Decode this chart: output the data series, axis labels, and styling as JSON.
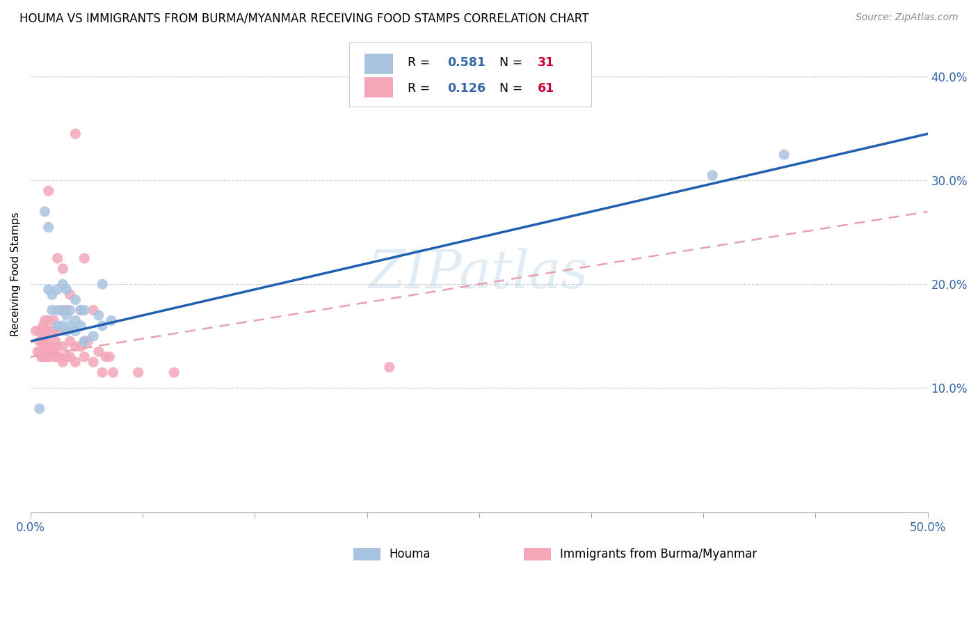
{
  "title": "HOUMA VS IMMIGRANTS FROM BURMA/MYANMAR RECEIVING FOOD STAMPS CORRELATION CHART",
  "source": "Source: ZipAtlas.com",
  "ylabel": "Receiving Food Stamps",
  "xlim": [
    0.0,
    0.5
  ],
  "ylim": [
    -0.02,
    0.44
  ],
  "ytick_labels": [
    "10.0%",
    "20.0%",
    "30.0%",
    "40.0%"
  ],
  "ytick_values": [
    0.1,
    0.2,
    0.3,
    0.4
  ],
  "xtick_minor": [
    0.0,
    0.0625,
    0.125,
    0.1875,
    0.25,
    0.3125,
    0.375,
    0.4375,
    0.5
  ],
  "houma_R": 0.581,
  "houma_N": 31,
  "burma_R": 0.126,
  "burma_N": 61,
  "houma_color": "#a8c4e0",
  "burma_color": "#f4a7b9",
  "houma_line_color": "#2060b0",
  "burma_line_color": "#e06080",
  "burma_line_dash_color": "#e8a0b0",
  "watermark": "ZIPatlas",
  "legend_R_color": "#3465a4",
  "legend_N_color": "#cc0033",
  "houma_x": [
    0.005,
    0.008,
    0.01,
    0.01,
    0.012,
    0.012,
    0.015,
    0.015,
    0.015,
    0.018,
    0.018,
    0.018,
    0.02,
    0.02,
    0.02,
    0.022,
    0.022,
    0.025,
    0.025,
    0.025,
    0.028,
    0.028,
    0.03,
    0.03,
    0.035,
    0.038,
    0.04,
    0.04,
    0.045,
    0.38,
    0.42
  ],
  "houma_y": [
    0.08,
    0.27,
    0.195,
    0.255,
    0.175,
    0.19,
    0.16,
    0.175,
    0.195,
    0.16,
    0.175,
    0.2,
    0.155,
    0.17,
    0.195,
    0.16,
    0.175,
    0.155,
    0.165,
    0.185,
    0.16,
    0.175,
    0.145,
    0.175,
    0.15,
    0.17,
    0.16,
    0.2,
    0.165,
    0.305,
    0.325
  ],
  "burma_x": [
    0.003,
    0.004,
    0.005,
    0.005,
    0.005,
    0.006,
    0.006,
    0.007,
    0.007,
    0.008,
    0.008,
    0.008,
    0.008,
    0.009,
    0.009,
    0.01,
    0.01,
    0.01,
    0.01,
    0.01,
    0.012,
    0.012,
    0.013,
    0.013,
    0.013,
    0.013,
    0.014,
    0.014,
    0.015,
    0.015,
    0.015,
    0.016,
    0.016,
    0.017,
    0.018,
    0.018,
    0.018,
    0.02,
    0.02,
    0.022,
    0.022,
    0.022,
    0.025,
    0.025,
    0.025,
    0.028,
    0.028,
    0.03,
    0.03,
    0.03,
    0.032,
    0.035,
    0.035,
    0.038,
    0.04,
    0.042,
    0.044,
    0.046,
    0.06,
    0.08,
    0.2
  ],
  "burma_y": [
    0.155,
    0.135,
    0.135,
    0.145,
    0.155,
    0.13,
    0.145,
    0.13,
    0.16,
    0.13,
    0.14,
    0.15,
    0.165,
    0.13,
    0.145,
    0.13,
    0.14,
    0.155,
    0.165,
    0.29,
    0.135,
    0.155,
    0.13,
    0.14,
    0.155,
    0.165,
    0.13,
    0.145,
    0.13,
    0.14,
    0.225,
    0.13,
    0.155,
    0.175,
    0.125,
    0.14,
    0.215,
    0.13,
    0.175,
    0.13,
    0.145,
    0.19,
    0.125,
    0.14,
    0.345,
    0.14,
    0.175,
    0.13,
    0.145,
    0.225,
    0.145,
    0.125,
    0.175,
    0.135,
    0.115,
    0.13,
    0.13,
    0.115,
    0.115,
    0.115,
    0.12
  ],
  "houma_line_x0": 0.0,
  "houma_line_y0": 0.145,
  "houma_line_x1": 0.5,
  "houma_line_y1": 0.345,
  "burma_line_x0": 0.0,
  "burma_line_y0": 0.13,
  "burma_line_x1": 0.5,
  "burma_line_y1": 0.27
}
